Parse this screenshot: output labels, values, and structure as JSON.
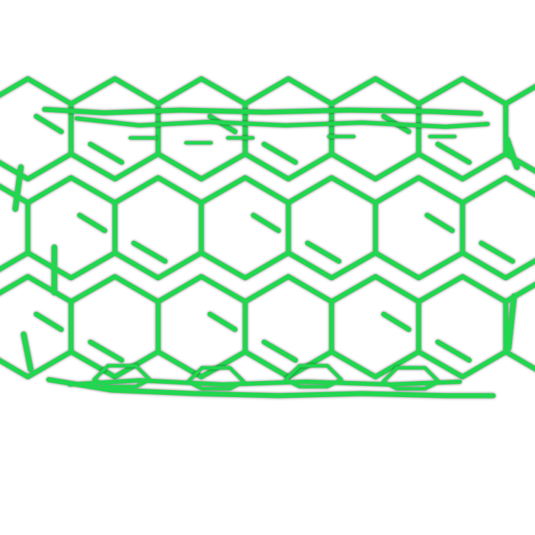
{
  "image": {
    "subject": "carbon-nanotube-lattice",
    "stroke_color": "#22d64f",
    "background_color": "#ffffff",
    "bond_shadow_color": "#000000"
  }
}
